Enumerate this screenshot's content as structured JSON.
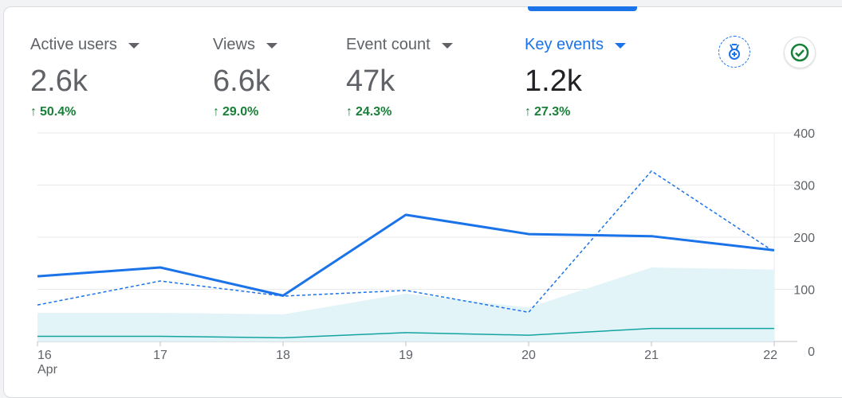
{
  "metrics": [
    {
      "label": "Active users",
      "value": "2.6k",
      "change": "50.4%",
      "active": false
    },
    {
      "label": "Views",
      "value": "6.6k",
      "change": "29.0%",
      "active": false
    },
    {
      "label": "Event count",
      "value": "47k",
      "change": "24.3%",
      "active": false
    },
    {
      "label": "Key events",
      "value": "1.2k",
      "change": "27.3%",
      "active": true
    }
  ],
  "icons": {
    "badge": "medal-badge-icon",
    "check": "check-circle-icon",
    "change_arrow": "arrow-up-icon"
  },
  "colors": {
    "accent": "#1a73e8",
    "positive": "#188038",
    "solid_line": "#1a73e8",
    "dashed_line": "#1a73e8",
    "teal_line": "#12a4a0",
    "area_fill": "#e3f4f8"
  },
  "chart_data": {
    "type": "line",
    "x": [
      "16",
      "17",
      "18",
      "19",
      "20",
      "21",
      "22"
    ],
    "x_sublabel": "Apr",
    "ylim": [
      0,
      400
    ],
    "yticks": [
      "0",
      "100",
      "200",
      "300",
      "400"
    ],
    "grid": true,
    "series": [
      {
        "style": "solid",
        "values": [
          125,
          142,
          88,
          243,
          206,
          202,
          175
        ]
      },
      {
        "style": "dashed",
        "values": [
          70,
          116,
          87,
          98,
          56,
          327,
          172
        ]
      },
      {
        "style": "area",
        "values": [
          55,
          55,
          52,
          92,
          65,
          142,
          138
        ]
      },
      {
        "style": "teal",
        "values": [
          10,
          10,
          7,
          17,
          12,
          25,
          25
        ]
      }
    ]
  }
}
